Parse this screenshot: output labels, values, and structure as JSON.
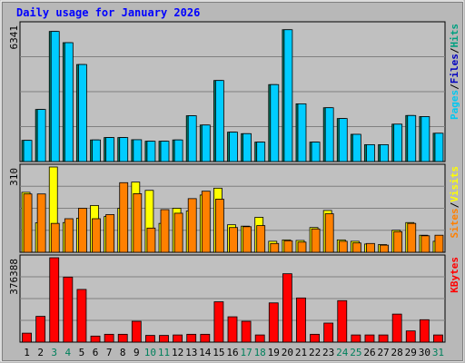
{
  "chart_data": {
    "type": "bar",
    "title": "Daily usage for January 2026",
    "categories": [
      "1",
      "2",
      "3",
      "4",
      "5",
      "6",
      "7",
      "8",
      "9",
      "10",
      "11",
      "12",
      "13",
      "14",
      "15",
      "16",
      "17",
      "18",
      "19",
      "20",
      "21",
      "22",
      "23",
      "24",
      "25",
      "26",
      "27",
      "28",
      "29",
      "30",
      "31"
    ],
    "weekend_days": [
      "3",
      "4",
      "10",
      "11",
      "17",
      "18",
      "24",
      "25",
      "31"
    ],
    "panels": [
      {
        "id": "pages-files-hits",
        "max_label": "6341",
        "ymax": 6341,
        "axis_label_parts": [
          "Pages",
          "/",
          "Files",
          "/",
          "Hits"
        ],
        "axis_label_colors": [
          "#00c8f0",
          "#000000",
          "#0000c0",
          "#000000",
          "#00a080"
        ],
        "series": [
          {
            "key": "hits",
            "color": "#00806a",
            "values": [
              980,
              2410,
              6020,
              5500,
              4490,
              1000,
              1110,
              1110,
              1010,
              940,
              940,
              1000,
              2120,
              1690,
              3750,
              1360,
              1290,
              900,
              3560,
              6100,
              2670,
              900,
              2490,
              1990,
              1260,
              780,
              780,
              1730,
              2130,
              2080,
              1310
            ]
          },
          {
            "key": "files",
            "color": "#00ccff",
            "values": [
              980,
              2410,
              6020,
              5500,
              4490,
              1000,
              1110,
              1110,
              1010,
              940,
              940,
              1000,
              2120,
              1690,
              3750,
              1360,
              1290,
              900,
              3560,
              6100,
              2670,
              900,
              2490,
              1990,
              1260,
              780,
              780,
              1730,
              2130,
              2080,
              1310
            ]
          }
        ]
      },
      {
        "id": "sites-visits",
        "max_label": "310",
        "ymax": 310,
        "axis_label_parts": [
          "Sites",
          "/",
          "Visits"
        ],
        "axis_label_colors": [
          "#ff8000",
          "#000000",
          "#ffff00"
        ],
        "series": [
          {
            "key": "visits",
            "color": "#ffff00",
            "values": [
              218,
              107,
              310,
              108,
              124,
              170,
              130,
              160,
              255,
              225,
              105,
              160,
              150,
              208,
              233,
              100,
              95,
              127,
              40,
              45,
              43,
              90,
              152,
              45,
              40,
              30,
              28,
              80,
              108,
              62,
              40
            ]
          },
          {
            "key": "sites",
            "color": "#ff8000",
            "values": [
              212,
              212,
              105,
              122,
              160,
              122,
              137,
              253,
              213,
              88,
              155,
              142,
              195,
              222,
              193,
              90,
              93,
              97,
              32,
              42,
              37,
              85,
              140,
              40,
              34,
              32,
              26,
              75,
              105,
              60,
              62
            ]
          }
        ]
      },
      {
        "id": "kbytes",
        "max_label": "376388",
        "ymax": 376388,
        "axis_label_parts": [
          "KBytes"
        ],
        "axis_label_colors": [
          "#ff0000"
        ],
        "series": [
          {
            "key": "kbytes",
            "color": "#ff0000",
            "values": [
              40000,
              115000,
              376388,
              290000,
              235000,
              27000,
              35000,
              35000,
              93000,
              30000,
              30000,
              32000,
              35000,
              35000,
              180000,
              113000,
              93000,
              32000,
              175000,
              305000,
              197000,
              35000,
              85000,
              185000,
              32000,
              32000,
              32000,
              125000,
              50000,
              100000,
              32000
            ]
          }
        ]
      }
    ],
    "colors": {
      "weekday_label": "#000000",
      "weekend_label": "#00805c",
      "title": "#0000ff",
      "plot_bg": "#c0c0c0",
      "frame": "#b8b8b8",
      "grid": "#808080"
    }
  }
}
